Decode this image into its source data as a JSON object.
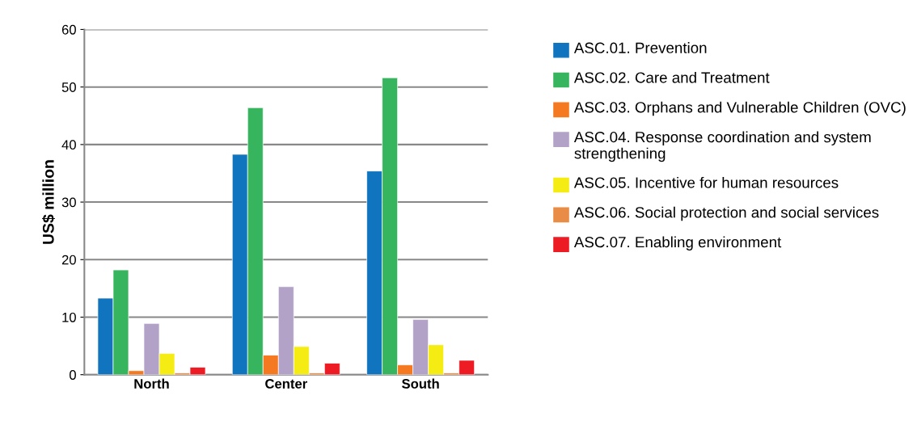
{
  "chart_data": {
    "type": "bar",
    "ylabel": "US$ million",
    "categories": [
      "North",
      "Center",
      "South"
    ],
    "series": [
      {
        "name": "ASC.01. Prevention",
        "color": "#1174be",
        "values": [
          13.3,
          38.3,
          35.4
        ]
      },
      {
        "name": "ASC.02. Care and Treatment",
        "color": "#37b55e",
        "values": [
          18.2,
          46.4,
          51.6
        ]
      },
      {
        "name": "ASC.03. Orphans and Vulnerable Children (OVC)",
        "color": "#f47920",
        "values": [
          0.7,
          3.4,
          1.7
        ]
      },
      {
        "name": "ASC.04. Response coordination and system strengthening",
        "color": "#b3a2c8",
        "values": [
          8.9,
          15.3,
          9.6
        ]
      },
      {
        "name": "ASC.05. Incentive for human resources",
        "color": "#f5ec13",
        "values": [
          3.7,
          4.9,
          5.2
        ]
      },
      {
        "name": "ASC.06. Social protection and social services",
        "color": "#e98c45",
        "values": [
          0.3,
          0.3,
          0.3
        ]
      },
      {
        "name": "ASC.07. Enabling environment",
        "color": "#ed1c24",
        "values": [
          1.3,
          2.0,
          2.5
        ]
      }
    ],
    "ylim": [
      0,
      60
    ],
    "yticks": [
      0,
      10,
      20,
      30,
      40,
      50,
      60
    ],
    "grid": "y",
    "legend": "right"
  }
}
